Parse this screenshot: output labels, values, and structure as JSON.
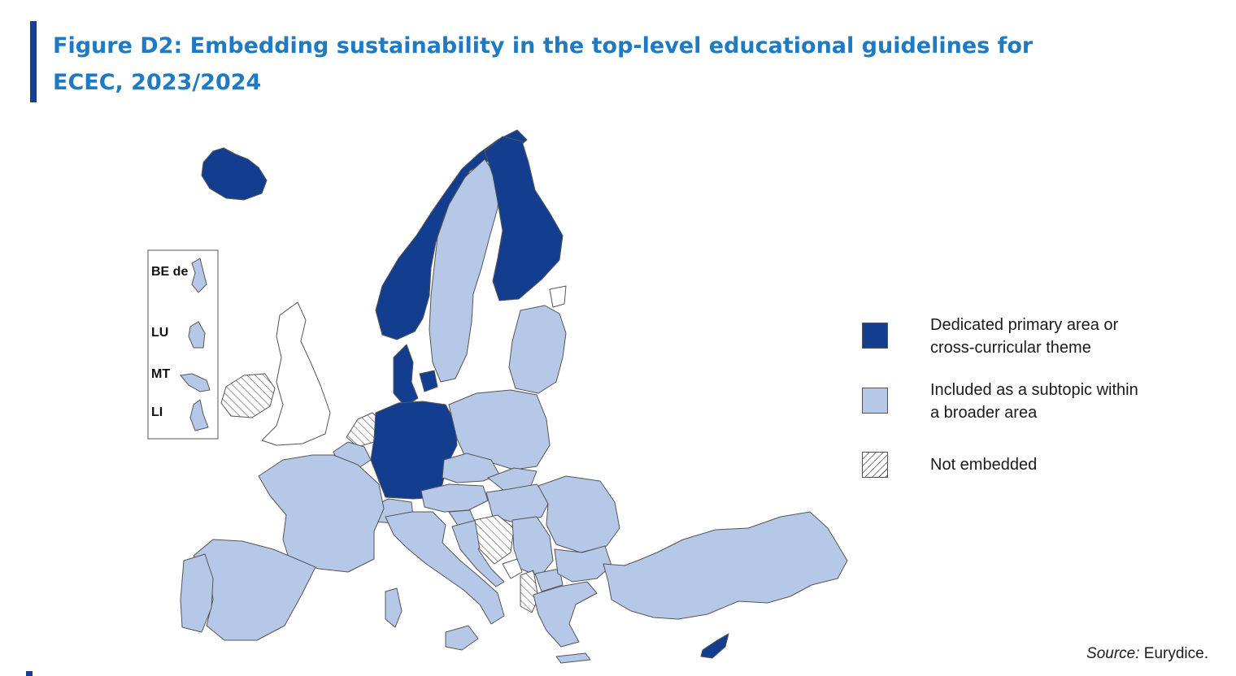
{
  "title": "Figure D2: Embedding sustainability in the top-level educational guidelines for ECEC, 2023/2024",
  "colors": {
    "dedicated": "#133e8f",
    "subtopic": "#b6c8e8",
    "not_embedded": "#ffffff",
    "other": "#ffffff",
    "border": "#555555",
    "title": "#1f7ac4",
    "accent_bar": "#1a3e8f"
  },
  "legend": [
    {
      "key": "dedicated",
      "label_line1": "Dedicated primary area or",
      "label_line2": "cross-curricular theme"
    },
    {
      "key": "subtopic",
      "label_line1": "Included as a subtopic within",
      "label_line2": "a broader area"
    },
    {
      "key": "not_embedded",
      "label_line1": "Not embedded",
      "label_line2": ""
    }
  ],
  "inset": {
    "labels": [
      "BE de",
      "LU",
      "MT",
      "LI"
    ],
    "categories": [
      "subtopic",
      "subtopic",
      "subtopic",
      "subtopic"
    ]
  },
  "source": {
    "prefix": "Source:",
    "text": " Eurydice."
  }
}
